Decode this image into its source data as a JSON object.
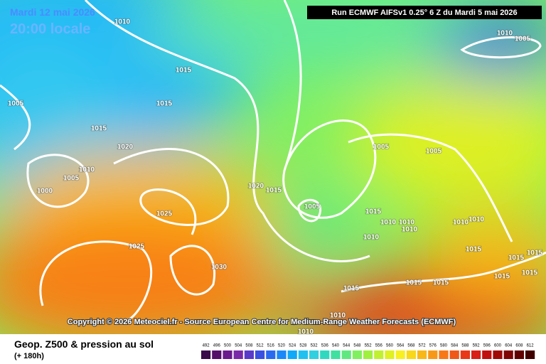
{
  "header": {
    "date": "Mardi 12 mai 2026",
    "time": "20:00 locale",
    "run": "Run ECMWF AIFSv1 0.25° 6 Z du Mardi 5 mai 2026"
  },
  "copyright": "Copyright © 2026 Meteociel.fr - Source European Centre for Medium-Range Weather Forecasts (ECMWF)",
  "footer": {
    "title": "Geop. Z500 & pression au sol",
    "lead": "(+ 180h)"
  },
  "isobar_labels": [
    "1010",
    "1015",
    "1005",
    "1015",
    "1015",
    "1020",
    "1010",
    "1005",
    "1000",
    "1020",
    "1015",
    "1025",
    "1025",
    "1030",
    "1005",
    "1015",
    "1005",
    "1005",
    "1010",
    "1005",
    "1010",
    "1010",
    "1010",
    "1010",
    "1010",
    "1010",
    "1015",
    "1015",
    "1015",
    "1015",
    "1015",
    "1015",
    "1015",
    "1015",
    "1010",
    "1010"
  ],
  "scale": {
    "labels": [
      "492",
      "496",
      "500",
      "504",
      "508",
      "512",
      "516",
      "520",
      "524",
      "528",
      "532",
      "536",
      "540",
      "544",
      "548",
      "552",
      "556",
      "560",
      "564",
      "568",
      "572",
      "576",
      "580",
      "584",
      "588",
      "592",
      "596",
      "600",
      "604",
      "608",
      "612"
    ],
    "colors": [
      "#3a0a4a",
      "#55106a",
      "#6a1a8c",
      "#7a2aa8",
      "#5a3ac8",
      "#3a50e0",
      "#2a6af0",
      "#1a88f8",
      "#10a8f8",
      "#20c0f0",
      "#30d0e0",
      "#30d8c0",
      "#40e0a0",
      "#60e880",
      "#80f060",
      "#a0f040",
      "#c0f030",
      "#e0f020",
      "#f8f020",
      "#f8d818",
      "#f8b818",
      "#f89818",
      "#f87818",
      "#f05818",
      "#e83818",
      "#d82018",
      "#c01010",
      "#a00808",
      "#800404",
      "#600000",
      "#400000"
    ]
  }
}
